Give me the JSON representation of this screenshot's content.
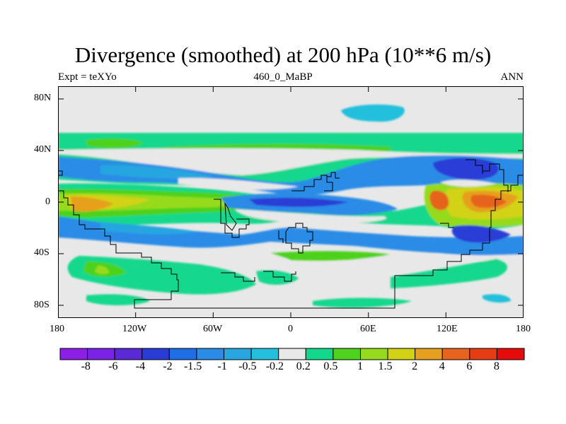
{
  "title": "Divergence (smoothed) at 200 hPa (10**6 m/s)",
  "left_string": "Expt = teXYo",
  "center_string": "460_0_MaBP",
  "right_string": "ANN",
  "lat_labels": [
    "80N",
    "40N",
    "0",
    "40S",
    "80S"
  ],
  "lon_labels": [
    "180",
    "120W",
    "60W",
    "0",
    "60E",
    "120E",
    "180"
  ],
  "colorbar": {
    "labels": [
      "-8",
      "-6",
      "-4",
      "-2",
      "-1.5",
      "-1",
      "-0.5",
      "-0.2",
      "0.2",
      "0.5",
      "1",
      "1.5",
      "2",
      "4",
      "6",
      "8"
    ],
    "colors": [
      "#8c1ee6",
      "#7a22e6",
      "#5a2ad6",
      "#2a3cd6",
      "#1e6ee6",
      "#2a8ce6",
      "#28a6e0",
      "#22c0dc",
      "#e8e8e8",
      "#12d88c",
      "#4ed21e",
      "#96da1e",
      "#d2d214",
      "#e6a01e",
      "#e6641e",
      "#e63c14",
      "#e60a0a"
    ]
  },
  "colors": {
    "background": "#e8e8e8",
    "coast": "#000000"
  }
}
